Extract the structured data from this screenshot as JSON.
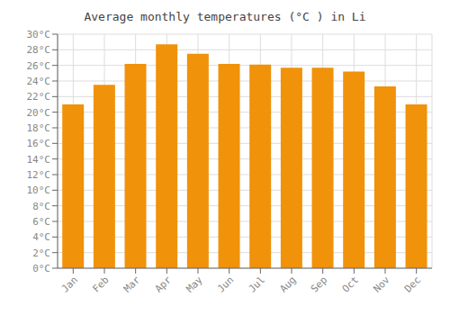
{
  "chart_data": {
    "type": "bar",
    "title": "Average monthly temperatures (°C ) in Li",
    "categories": [
      "Jan",
      "Feb",
      "Mar",
      "Apr",
      "May",
      "Jun",
      "Jul",
      "Aug",
      "Sep",
      "Oct",
      "Nov",
      "Dec"
    ],
    "values": [
      21,
      23.5,
      26.2,
      28.7,
      27.5,
      26.2,
      26.1,
      25.7,
      25.7,
      25.2,
      23.3,
      21
    ],
    "color": "#F0920A",
    "ylim": [
      0,
      30
    ],
    "yticks": [
      {
        "value": 0,
        "label": "0°C"
      },
      {
        "value": 2,
        "label": "2°C"
      },
      {
        "value": 4,
        "label": "4°C"
      },
      {
        "value": 6,
        "label": "6°C"
      },
      {
        "value": 8,
        "label": "8°C"
      },
      {
        "value": 10,
        "label": "10°C"
      },
      {
        "value": 12,
        "label": "12°C"
      },
      {
        "value": 14,
        "label": "14°C"
      },
      {
        "value": 16,
        "label": "16°C"
      },
      {
        "value": 18,
        "label": "18°C"
      },
      {
        "value": 20,
        "label": "20°C"
      },
      {
        "value": 22,
        "label": "22°C"
      },
      {
        "value": 24,
        "label": "24°C"
      },
      {
        "value": 26,
        "label": "26°C"
      },
      {
        "value": 28,
        "label": "28°C"
      },
      {
        "value": 30,
        "label": "30°C"
      }
    ],
    "grid": true
  }
}
